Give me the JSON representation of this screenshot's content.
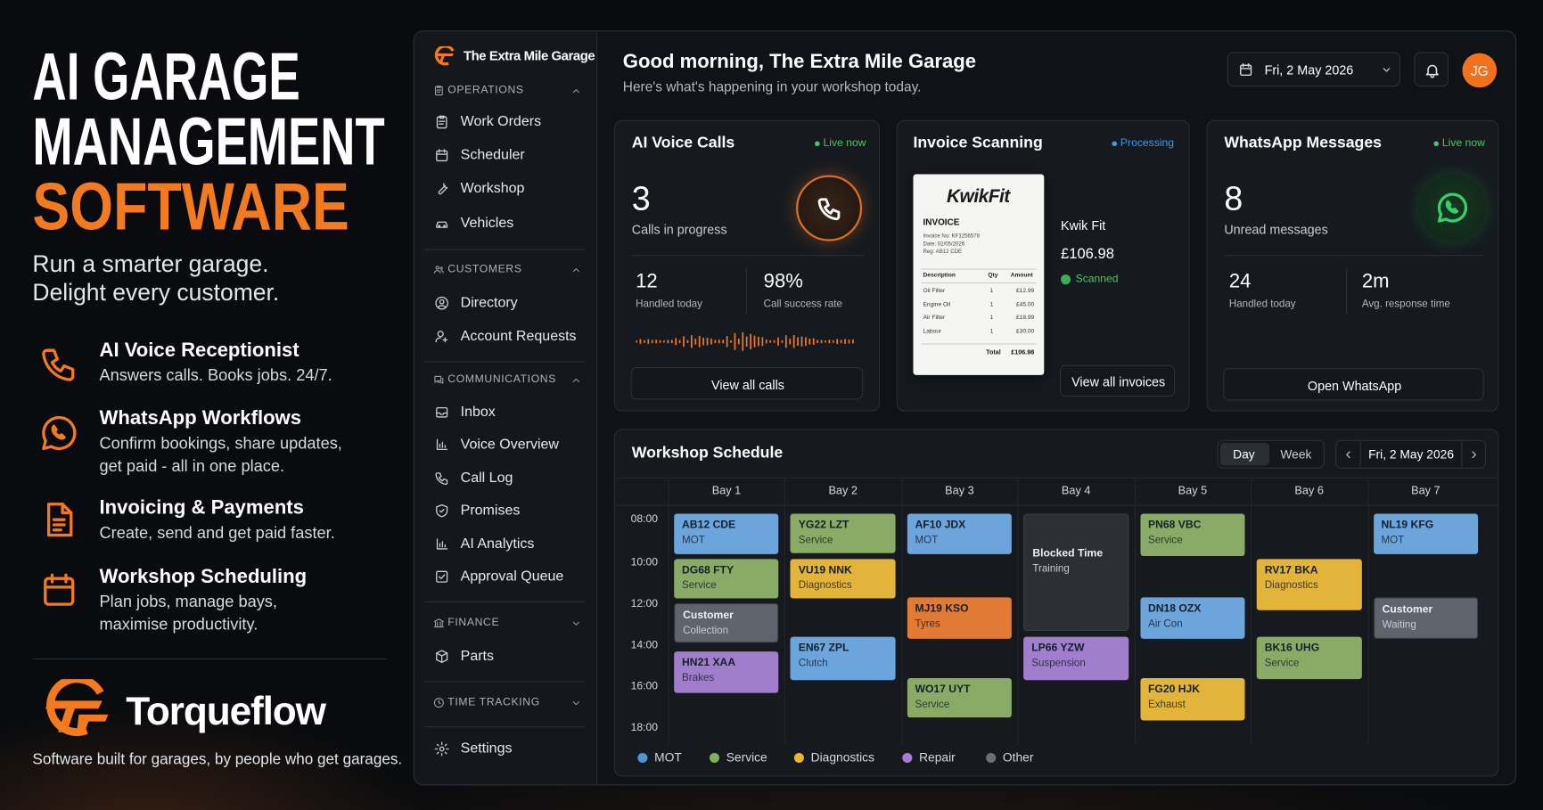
{
  "promo": {
    "title_lines": [
      "AI GARAGE",
      "MANAGEMENT",
      "SOFTWARE"
    ],
    "tagline": [
      "Run a smarter garage.",
      "Delight every customer."
    ],
    "features": [
      {
        "title": "AI Voice Receptionist",
        "desc": [
          "Answers calls. Books jobs. 24/7."
        ]
      },
      {
        "title": "WhatsApp Workflows",
        "desc": [
          "Confirm bookings, share updates,",
          "get paid - all in one place."
        ]
      },
      {
        "title": "Invoicing & Payments",
        "desc": [
          "Create, send and get paid faster."
        ]
      },
      {
        "title": "Workshop Scheduling",
        "desc": [
          "Plan jobs, manage bays,",
          "maximise productivity."
        ]
      }
    ],
    "brand": "Torqueflow",
    "footer": "Software built for garages, by people who get garages."
  },
  "sidebar": {
    "brand": "The Extra Mile Garage",
    "sections": [
      {
        "title": "OPERATIONS",
        "expanded": true,
        "items": [
          "Work Orders",
          "Scheduler",
          "Workshop",
          "Vehicles"
        ]
      },
      {
        "title": "CUSTOMERS",
        "expanded": true,
        "items": [
          "Directory",
          "Account Requests"
        ]
      },
      {
        "title": "COMMUNICATIONS",
        "expanded": true,
        "items": [
          "Inbox",
          "Voice Overview",
          "Call Log",
          "Promises",
          "AI Analytics",
          "Approval Queue"
        ]
      },
      {
        "title": "FINANCE",
        "expanded": false,
        "items": [
          "Parts"
        ]
      },
      {
        "title": "TIME TRACKING",
        "expanded": false,
        "items": []
      }
    ],
    "settings": "Settings"
  },
  "header": {
    "greeting": "Good morning, The Extra Mile Garage",
    "subtitle": "Here's what's happening in your workshop today.",
    "date": "Fri, 2 May 2026",
    "avatar": "JG"
  },
  "voice_card": {
    "title": "AI Voice Calls",
    "status": "Live now",
    "main_value": "3",
    "main_label": "Calls in progress",
    "stats": [
      {
        "value": "12",
        "label": "Handled today"
      },
      {
        "value": "98%",
        "label": "Call success rate"
      }
    ],
    "button": "View all calls"
  },
  "invoice_card": {
    "title": "Invoice Scanning",
    "status": "Processing",
    "receipt": {
      "brand": "KwikFit",
      "heading": "INVOICE",
      "meta": [
        "Invoice No: KF1256578",
        "Date: 02/05/2026",
        "Reg: AB12 CDE"
      ],
      "columns": [
        "Description",
        "Qty",
        "Amount"
      ],
      "rows": [
        [
          "Oil Filter",
          "1",
          "£12.99"
        ],
        [
          "Engine Oil",
          "1",
          "£45.00"
        ],
        [
          "Air Filter",
          "1",
          "£18.99"
        ],
        [
          "Labour",
          "1",
          "£30.00"
        ]
      ],
      "total_label": "Total",
      "total": "£106.98"
    },
    "supplier": "Kwik Fit",
    "amount": "£106.98",
    "state": "Scanned",
    "button": "View all invoices"
  },
  "whatsapp_card": {
    "title": "WhatsApp Messages",
    "status": "Live now",
    "main_value": "8",
    "main_label": "Unread messages",
    "stats": [
      {
        "value": "24",
        "label": "Handled today"
      },
      {
        "value": "2m",
        "label": "Avg. response time"
      }
    ],
    "button": "Open WhatsApp"
  },
  "schedule": {
    "title": "Workshop Schedule",
    "views": [
      "Day",
      "Week"
    ],
    "date": "Fri, 2 May 2026",
    "times": [
      "08:00",
      "10:00",
      "12:00",
      "14:00",
      "16:00",
      "18:00"
    ],
    "bays": [
      {
        "name": "Bay 1",
        "jobs": [
          {
            "title": "AB12 CDE",
            "detail": "MOT",
            "color": "#6ba5db"
          },
          {
            "title": "DG68 FTY",
            "detail": "Service",
            "color": "#8aab66"
          },
          {
            "title": "Customer",
            "detail": "Collection",
            "color": "#5f636b"
          },
          {
            "title": "HN21 XAA",
            "detail": "Brakes",
            "color": "#a07ecb"
          }
        ]
      },
      {
        "name": "Bay 2",
        "jobs": [
          {
            "title": "YG22 LZT",
            "detail": "Service",
            "color": "#8aab66"
          },
          {
            "title": "VU19 NNK",
            "detail": "Diagnostics",
            "color": "#e3b43a"
          },
          {
            "title": "EN67 ZPL",
            "detail": "Clutch",
            "color": "#6ba5db"
          }
        ]
      },
      {
        "name": "Bay 3",
        "jobs": [
          {
            "title": "AF10 JDX",
            "detail": "MOT",
            "color": "#6ba5db"
          },
          {
            "title": "MJ19 KSO",
            "detail": "Tyres",
            "color": "#e07a34"
          },
          {
            "title": "WO17 UYT",
            "detail": "Service",
            "color": "#8aab66"
          }
        ]
      },
      {
        "name": "Bay 4",
        "jobs": [
          {
            "title": "Blocked Time",
            "detail": "Training",
            "color": "#2c2f35"
          },
          {
            "title": "LP66 YZW",
            "detail": "Suspension",
            "color": "#a07ecb"
          }
        ]
      },
      {
        "name": "Bay 5",
        "jobs": [
          {
            "title": "PN68 VBC",
            "detail": "Service",
            "color": "#8aab66"
          },
          {
            "title": "DN18 OZX",
            "detail": "Air Con",
            "color": "#6ba5db"
          },
          {
            "title": "FG20 HJK",
            "detail": "Exhaust",
            "color": "#e3b43a"
          }
        ]
      },
      {
        "name": "Bay 6",
        "jobs": [
          {
            "title": "RV17 BKA",
            "detail": "Diagnostics",
            "color": "#e3b43a"
          },
          {
            "title": "BK16 UHG",
            "detail": "Service",
            "color": "#8aab66"
          }
        ]
      },
      {
        "name": "Bay 7",
        "jobs": [
          {
            "title": "NL19 KFG",
            "detail": "MOT",
            "color": "#6ba5db"
          },
          {
            "title": "Customer",
            "detail": "Waiting",
            "color": "#5f636b"
          }
        ]
      }
    ],
    "legend": [
      {
        "name": "MOT",
        "color": "#4f93d8"
      },
      {
        "name": "Service",
        "color": "#7fb05a"
      },
      {
        "name": "Diagnostics",
        "color": "#e8b825"
      },
      {
        "name": "Repair",
        "color": "#a57ed4"
      },
      {
        "name": "Other",
        "color": "#6a6e76"
      }
    ]
  }
}
